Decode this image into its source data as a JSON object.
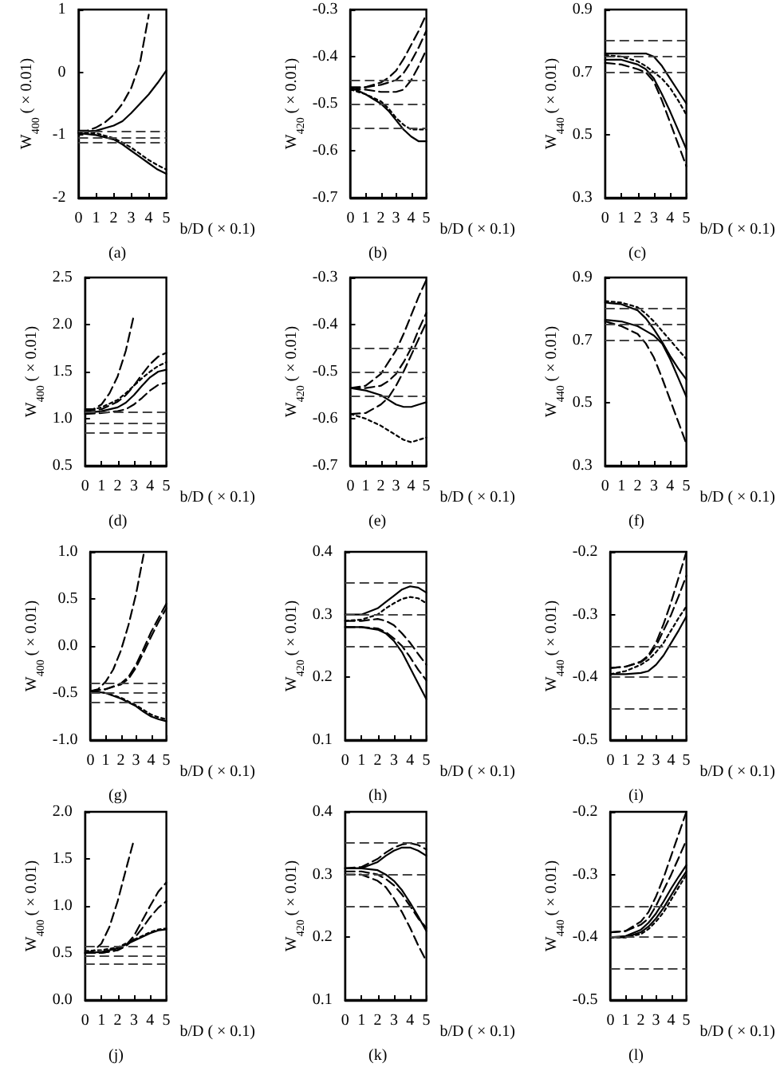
{
  "chart_data": [
    {
      "type": "line",
      "ylabel": "W$_{400}$ ( × 0.01)",
      "xlabel": "b/D ( × 0.1)",
      "annotations": [
        "(a)"
      ],
      "x": [
        0,
        1,
        2,
        2.5,
        3,
        3.5,
        4,
        4.5,
        5
      ],
      "xlim": [
        0,
        5
      ],
      "xticks": [
        0,
        1,
        2,
        3,
        4,
        5
      ],
      "ylim": [
        -2,
        1
      ],
      "yticks": [
        -2,
        -1,
        0,
        1
      ],
      "series": [
        {
          "color": "#000000",
          "line_style": "dashed",
          "x": [
            0,
            0.5,
            1,
            1.5,
            2,
            2.5,
            3,
            3.5,
            4
          ],
          "values": [
            -0.93,
            -0.93,
            -0.88,
            -0.8,
            -0.68,
            -0.5,
            -0.25,
            0.15,
            0.92
          ]
        },
        {
          "color": "#000000",
          "line_style": "solid",
          "values": [
            -0.95,
            -0.93,
            -0.85,
            -0.78,
            -0.65,
            -0.5,
            -0.35,
            -0.17,
            0.03
          ]
        },
        {
          "color": "#000000",
          "line_style": "dotted",
          "values": [
            -0.97,
            -0.97,
            -1.05,
            -1.12,
            -1.2,
            -1.3,
            -1.4,
            -1.48,
            -1.55
          ]
        },
        {
          "color": "#000000",
          "line_style": "solid",
          "values": [
            -0.97,
            -1.0,
            -1.07,
            -1.15,
            -1.25,
            -1.35,
            -1.45,
            -1.55,
            -1.62
          ]
        }
      ],
      "ref_lines": [
        {
          "axis": "y",
          "value": -0.95,
          "color": "#444444",
          "line_style": "dashed"
        },
        {
          "axis": "y",
          "value": -1.05,
          "color": "#444444",
          "line_style": "dashed"
        },
        {
          "axis": "y",
          "value": -1.12,
          "color": "#444444",
          "line_style": "dashed"
        }
      ]
    },
    {
      "type": "line",
      "ylabel": "W$_{420}$ ( × 0.01)",
      "xlabel": "b/D ( × 0.1)",
      "annotations": [
        "(b)"
      ],
      "x": [
        0,
        1,
        2,
        2.5,
        3,
        3.5,
        4,
        4.5,
        5
      ],
      "xlim": [
        0,
        5
      ],
      "xticks": [
        0,
        1,
        2,
        3,
        4,
        5
      ],
      "ylim": [
        -0.7,
        -0.3
      ],
      "yticks": [
        -0.7,
        -0.6,
        -0.5,
        -0.4,
        -0.3
      ],
      "series": [
        {
          "color": "#000000",
          "line_style": "dashed",
          "values": [
            -0.465,
            -0.465,
            -0.455,
            -0.445,
            -0.43,
            -0.405,
            -0.375,
            -0.345,
            -0.31
          ]
        },
        {
          "color": "#000000",
          "line_style": "dashed",
          "values": [
            -0.47,
            -0.465,
            -0.46,
            -0.455,
            -0.45,
            -0.435,
            -0.41,
            -0.38,
            -0.345
          ]
        },
        {
          "color": "#000000",
          "line_style": "dashed",
          "values": [
            -0.47,
            -0.47,
            -0.475,
            -0.475,
            -0.475,
            -0.47,
            -0.45,
            -0.42,
            -0.385
          ]
        },
        {
          "color": "#000000",
          "line_style": "dotted",
          "values": [
            -0.47,
            -0.48,
            -0.495,
            -0.51,
            -0.53,
            -0.545,
            -0.555,
            -0.555,
            -0.555
          ]
        },
        {
          "color": "#000000",
          "line_style": "solid",
          "values": [
            -0.465,
            -0.48,
            -0.5,
            -0.515,
            -0.535,
            -0.555,
            -0.57,
            -0.58,
            -0.58
          ]
        }
      ],
      "ref_lines": [
        {
          "axis": "y",
          "value": -0.45,
          "color": "#444444",
          "line_style": "dashed"
        },
        {
          "axis": "y",
          "value": -0.5,
          "color": "#444444",
          "line_style": "dashed"
        },
        {
          "axis": "y",
          "value": -0.55,
          "color": "#444444",
          "line_style": "dashed"
        }
      ]
    },
    {
      "type": "line",
      "ylabel": "W$_{440}$ ( × 0.01)",
      "xlabel": "b/D ( × 0.1)",
      "annotations": [
        "(c)"
      ],
      "x": [
        0,
        1,
        2,
        2.5,
        3,
        3.5,
        4,
        4.5,
        5
      ],
      "xlim": [
        0,
        5
      ],
      "xticks": [
        0,
        1,
        2,
        3,
        4,
        5
      ],
      "ylim": [
        0.3,
        0.9
      ],
      "yticks": [
        0.3,
        0.5,
        0.7,
        0.9
      ],
      "series": [
        {
          "color": "#000000",
          "line_style": "solid",
          "values": [
            0.76,
            0.76,
            0.76,
            0.76,
            0.75,
            0.72,
            0.68,
            0.64,
            0.6
          ]
        },
        {
          "color": "#000000",
          "line_style": "dotted",
          "values": [
            0.755,
            0.75,
            0.735,
            0.72,
            0.7,
            0.68,
            0.65,
            0.61,
            0.565
          ]
        },
        {
          "color": "#000000",
          "line_style": "solid",
          "values": [
            0.74,
            0.74,
            0.725,
            0.71,
            0.68,
            0.63,
            0.575,
            0.515,
            0.455
          ]
        },
        {
          "color": "#000000",
          "line_style": "dashed",
          "values": [
            0.73,
            0.725,
            0.71,
            0.7,
            0.67,
            0.61,
            0.54,
            0.47,
            0.4
          ]
        }
      ],
      "ref_lines": [
        {
          "axis": "y",
          "value": 0.8,
          "color": "#444444",
          "line_style": "dashed"
        },
        {
          "axis": "y",
          "value": 0.75,
          "color": "#444444",
          "line_style": "dashed"
        },
        {
          "axis": "y",
          "value": 0.7,
          "color": "#444444",
          "line_style": "dashed"
        }
      ]
    },
    {
      "type": "line",
      "ylabel": "W$_{400}$ ( × 0.01)",
      "xlabel": "b/D ( × 0.1)",
      "annotations": [
        "(d)"
      ],
      "x": [
        0,
        1,
        2,
        2.5,
        3,
        3.5,
        4,
        4.5,
        5
      ],
      "xlim": [
        0,
        5
      ],
      "xticks": [
        0,
        1,
        2,
        3,
        4,
        5
      ],
      "ylim": [
        0.5,
        2.5
      ],
      "yticks": [
        0.5,
        {
          "value": 1,
          "label": "1.0"
        },
        1.5,
        {
          "value": 2,
          "label": "2.0"
        },
        2.5
      ],
      "series": [
        {
          "color": "#000000",
          "line_style": "dashed",
          "x": [
            0,
            0.5,
            1,
            1.5,
            2,
            2.5,
            3
          ],
          "values": [
            1.1,
            1.1,
            1.15,
            1.27,
            1.45,
            1.72,
            2.1
          ]
        },
        {
          "color": "#000000",
          "line_style": "dashed",
          "values": [
            1.08,
            1.1,
            1.18,
            1.25,
            1.35,
            1.47,
            1.58,
            1.66,
            1.7
          ]
        },
        {
          "color": "#000000",
          "line_style": "dotted",
          "values": [
            1.08,
            1.12,
            1.2,
            1.27,
            1.35,
            1.43,
            1.5,
            1.56,
            1.6
          ]
        },
        {
          "color": "#000000",
          "line_style": "solid",
          "values": [
            1.06,
            1.08,
            1.12,
            1.17,
            1.25,
            1.35,
            1.44,
            1.5,
            1.52
          ]
        },
        {
          "color": "#000000",
          "line_style": "dashed",
          "values": [
            1.05,
            1.06,
            1.08,
            1.1,
            1.15,
            1.22,
            1.3,
            1.36,
            1.38
          ]
        }
      ],
      "ref_lines": [
        {
          "axis": "y",
          "value": 1.07,
          "color": "#444444",
          "line_style": "dashed"
        },
        {
          "axis": "y",
          "value": 0.96,
          "color": "#444444",
          "line_style": "dashed"
        },
        {
          "axis": "y",
          "value": 0.86,
          "color": "#444444",
          "line_style": "dashed"
        }
      ]
    },
    {
      "type": "line",
      "ylabel": "W$_{420}$ ( × 0.01)",
      "xlabel": "b/D ( × 0.1)",
      "annotations": [
        "(e)"
      ],
      "x": [
        0,
        1,
        2,
        2.5,
        3,
        3.5,
        4,
        4.5,
        5
      ],
      "xlim": [
        0,
        5
      ],
      "xticks": [
        0,
        1,
        2,
        3,
        4,
        5
      ],
      "ylim": [
        -0.7,
        -0.3
      ],
      "yticks": [
        -0.7,
        -0.6,
        -0.5,
        -0.4,
        -0.3
      ],
      "series": [
        {
          "color": "#000000",
          "line_style": "dashed",
          "values": [
            -0.535,
            -0.53,
            -0.505,
            -0.48,
            -0.455,
            -0.42,
            -0.38,
            -0.34,
            -0.305
          ]
        },
        {
          "color": "#000000",
          "line_style": "dashed",
          "values": [
            -0.535,
            -0.535,
            -0.53,
            -0.52,
            -0.505,
            -0.48,
            -0.45,
            -0.41,
            -0.375
          ]
        },
        {
          "color": "#000000",
          "line_style": "dashed",
          "values": [
            -0.59,
            -0.588,
            -0.57,
            -0.555,
            -0.53,
            -0.5,
            -0.465,
            -0.43,
            -0.395
          ]
        },
        {
          "color": "#000000",
          "line_style": "solid",
          "values": [
            -0.535,
            -0.54,
            -0.55,
            -0.56,
            -0.57,
            -0.575,
            -0.575,
            -0.57,
            -0.565
          ]
        },
        {
          "color": "#000000",
          "line_style": "dotted",
          "values": [
            -0.59,
            -0.6,
            -0.615,
            -0.625,
            -0.635,
            -0.645,
            -0.65,
            -0.645,
            -0.64
          ]
        }
      ],
      "ref_lines": [
        {
          "axis": "y",
          "value": -0.45,
          "color": "#444444",
          "line_style": "dashed"
        },
        {
          "axis": "y",
          "value": -0.5,
          "color": "#444444",
          "line_style": "dashed"
        },
        {
          "axis": "y",
          "value": -0.55,
          "color": "#444444",
          "line_style": "dashed"
        }
      ]
    },
    {
      "type": "line",
      "ylabel": "W$_{440}$ ( × 0.01)",
      "xlabel": "b/D ( × 0.1)",
      "annotations": [
        "(f)"
      ],
      "x": [
        0,
        1,
        2,
        2.5,
        3,
        3.5,
        4,
        4.5,
        5
      ],
      "xlim": [
        0,
        5
      ],
      "xticks": [
        0,
        1,
        2,
        3,
        4,
        5
      ],
      "ylim": [
        0.3,
        0.9
      ],
      "yticks": [
        0.3,
        0.5,
        0.7,
        0.9
      ],
      "series": [
        {
          "color": "#000000",
          "line_style": "dotted",
          "values": [
            0.825,
            0.82,
            0.805,
            0.785,
            0.76,
            0.73,
            0.7,
            0.67,
            0.64
          ]
        },
        {
          "color": "#000000",
          "line_style": "solid",
          "values": [
            0.82,
            0.815,
            0.795,
            0.77,
            0.735,
            0.695,
            0.65,
            0.61,
            0.575
          ]
        },
        {
          "color": "#000000",
          "line_style": "solid",
          "values": [
            0.765,
            0.76,
            0.745,
            0.73,
            0.715,
            0.69,
            0.64,
            0.58,
            0.52
          ]
        },
        {
          "color": "#000000",
          "line_style": "dashed",
          "values": [
            0.76,
            0.745,
            0.72,
            0.69,
            0.645,
            0.58,
            0.51,
            0.44,
            0.37
          ]
        }
      ],
      "ref_lines": [
        {
          "axis": "y",
          "value": 0.8,
          "color": "#444444",
          "line_style": "dashed"
        },
        {
          "axis": "y",
          "value": 0.75,
          "color": "#444444",
          "line_style": "dashed"
        },
        {
          "axis": "y",
          "value": 0.7,
          "color": "#444444",
          "line_style": "dashed"
        }
      ]
    },
    {
      "type": "line",
      "ylabel": "W$_{400}$ ( × 0.01)",
      "xlabel": "b/D ( × 0.1)",
      "annotations": [
        "(g)"
      ],
      "x": [
        0,
        1,
        2,
        2.5,
        3,
        3.5,
        4,
        4.5,
        5
      ],
      "xlim": [
        0,
        5
      ],
      "xticks": [
        0,
        1,
        2,
        3,
        4,
        5
      ],
      "ylim": [
        -1,
        1
      ],
      "yticks": [
        {
          "value": -1,
          "label": "-1.0"
        },
        -0.5,
        {
          "value": 0,
          "label": "0.0"
        },
        0.5,
        {
          "value": 1,
          "label": "1.0"
        }
      ],
      "series": [
        {
          "color": "#000000",
          "line_style": "dashed",
          "x": [
            0,
            0.5,
            1,
            1.5,
            2,
            2.5,
            3,
            3.5
          ],
          "values": [
            -0.48,
            -0.46,
            -0.38,
            -0.25,
            -0.05,
            0.22,
            0.55,
            0.97
          ]
        },
        {
          "color": "#000000",
          "line_style": "dashed",
          "values": [
            -0.48,
            -0.46,
            -0.4,
            -0.33,
            -0.2,
            -0.03,
            0.15,
            0.3,
            0.45
          ]
        },
        {
          "color": "#000000",
          "line_style": "dashed",
          "values": [
            -0.48,
            -0.46,
            -0.41,
            -0.35,
            -0.23,
            -0.07,
            0.1,
            0.26,
            0.4
          ]
        },
        {
          "color": "#000000",
          "line_style": "solid",
          "values": [
            -0.48,
            -0.5,
            -0.56,
            -0.6,
            -0.64,
            -0.7,
            -0.75,
            -0.78,
            -0.8
          ]
        },
        {
          "color": "#000000",
          "line_style": "dotted",
          "values": [
            -0.48,
            -0.5,
            -0.55,
            -0.59,
            -0.63,
            -0.68,
            -0.73,
            -0.76,
            -0.78
          ]
        }
      ],
      "ref_lines": [
        {
          "axis": "y",
          "value": -0.4,
          "color": "#444444",
          "line_style": "dashed"
        },
        {
          "axis": "y",
          "value": -0.5,
          "color": "#444444",
          "line_style": "dashed"
        },
        {
          "axis": "y",
          "value": -0.6,
          "color": "#444444",
          "line_style": "dashed"
        }
      ]
    },
    {
      "type": "line",
      "ylabel": "W$_{420}$ ( × 0.01)",
      "xlabel": "b/D ( × 0.1)",
      "annotations": [
        "(h)"
      ],
      "x": [
        0,
        1,
        2,
        2.5,
        3,
        3.5,
        4,
        4.5,
        5
      ],
      "xlim": [
        0,
        5
      ],
      "xticks": [
        0,
        1,
        2,
        3,
        4,
        5
      ],
      "ylim": [
        0.1,
        0.4
      ],
      "yticks": [
        0.1,
        0.2,
        0.3,
        0.4
      ],
      "series": [
        {
          "color": "#000000",
          "line_style": "solid",
          "values": [
            0.3,
            0.3,
            0.31,
            0.32,
            0.33,
            0.34,
            0.345,
            0.343,
            0.335
          ]
        },
        {
          "color": "#000000",
          "line_style": "dotted",
          "values": [
            0.29,
            0.292,
            0.3,
            0.31,
            0.318,
            0.325,
            0.328,
            0.326,
            0.318
          ]
        },
        {
          "color": "#000000",
          "line_style": "dashed",
          "values": [
            0.29,
            0.29,
            0.293,
            0.29,
            0.283,
            0.27,
            0.255,
            0.237,
            0.22
          ]
        },
        {
          "color": "#000000",
          "line_style": "dashed",
          "values": [
            0.28,
            0.28,
            0.278,
            0.272,
            0.262,
            0.25,
            0.232,
            0.212,
            0.195
          ]
        },
        {
          "color": "#000000",
          "line_style": "solid",
          "values": [
            0.28,
            0.28,
            0.276,
            0.27,
            0.258,
            0.24,
            0.215,
            0.19,
            0.165
          ]
        }
      ],
      "ref_lines": [
        {
          "axis": "y",
          "value": 0.35,
          "color": "#444444",
          "line_style": "dashed"
        },
        {
          "axis": "y",
          "value": 0.3,
          "color": "#444444",
          "line_style": "dashed"
        },
        {
          "axis": "y",
          "value": 0.25,
          "color": "#444444",
          "line_style": "dashed"
        }
      ]
    },
    {
      "type": "line",
      "ylabel": "W$_{440}$ ( × 0.01)",
      "xlabel": "b/D ( × 0.1)",
      "annotations": [
        "(i)"
      ],
      "x": [
        0,
        1,
        2,
        2.5,
        3,
        3.5,
        4,
        4.5,
        5
      ],
      "xlim": [
        0,
        5
      ],
      "xticks": [
        0,
        1,
        2,
        3,
        4,
        5
      ],
      "ylim": [
        -0.5,
        -0.2
      ],
      "yticks": [
        -0.5,
        -0.4,
        -0.3,
        -0.2
      ],
      "series": [
        {
          "color": "#000000",
          "line_style": "dashed",
          "values": [
            -0.385,
            -0.383,
            -0.375,
            -0.365,
            -0.345,
            -0.315,
            -0.28,
            -0.24,
            -0.2
          ]
        },
        {
          "color": "#000000",
          "line_style": "dashed",
          "values": [
            -0.385,
            -0.383,
            -0.376,
            -0.367,
            -0.35,
            -0.325,
            -0.3,
            -0.27,
            -0.238
          ]
        },
        {
          "color": "#000000",
          "line_style": "dotted",
          "values": [
            -0.395,
            -0.39,
            -0.38,
            -0.372,
            -0.36,
            -0.345,
            -0.325,
            -0.305,
            -0.287
          ]
        },
        {
          "color": "#000000",
          "line_style": "solid",
          "values": [
            -0.395,
            -0.395,
            -0.393,
            -0.39,
            -0.38,
            -0.365,
            -0.345,
            -0.325,
            -0.303
          ]
        }
      ],
      "ref_lines": [
        {
          "axis": "y",
          "value": -0.35,
          "color": "#444444",
          "line_style": "dashed"
        },
        {
          "axis": "y",
          "value": -0.4,
          "color": "#444444",
          "line_style": "dashed"
        },
        {
          "axis": "y",
          "value": -0.45,
          "color": "#444444",
          "line_style": "dashed"
        }
      ]
    },
    {
      "type": "line",
      "ylabel": "W$_{400}$ ( × 0.01)",
      "xlabel": "b/D ( × 0.1)",
      "annotations": [
        "(j)"
      ],
      "x": [
        0,
        1,
        2,
        2.5,
        3,
        3.5,
        4,
        4.5,
        5
      ],
      "xlim": [
        0,
        5
      ],
      "xticks": [
        0,
        1,
        2,
        3,
        4,
        5
      ],
      "ylim": [
        0,
        2
      ],
      "yticks": [
        {
          "value": 0,
          "label": "0.0"
        },
        0.5,
        {
          "value": 1,
          "label": "1.0"
        },
        1.5,
        {
          "value": 2,
          "label": "2.0"
        }
      ],
      "series": [
        {
          "color": "#000000",
          "line_style": "dashed",
          "x": [
            0,
            0.5,
            1,
            1.5,
            2,
            2.5,
            3
          ],
          "values": [
            0.5,
            0.52,
            0.6,
            0.78,
            1.05,
            1.38,
            1.7
          ]
        },
        {
          "color": "#000000",
          "line_style": "dashed",
          "values": [
            0.5,
            0.5,
            0.53,
            0.58,
            0.68,
            0.84,
            1.0,
            1.15,
            1.25
          ]
        },
        {
          "color": "#000000",
          "line_style": "dashed",
          "values": [
            0.5,
            0.5,
            0.53,
            0.57,
            0.65,
            0.76,
            0.88,
            0.98,
            1.05
          ]
        },
        {
          "color": "#000000",
          "line_style": "solid",
          "values": [
            0.5,
            0.51,
            0.55,
            0.59,
            0.63,
            0.67,
            0.71,
            0.74,
            0.75
          ]
        },
        {
          "color": "#000000",
          "line_style": "dotted",
          "values": [
            0.52,
            0.53,
            0.56,
            0.6,
            0.64,
            0.68,
            0.72,
            0.75,
            0.76
          ]
        }
      ],
      "ref_lines": [
        {
          "axis": "y",
          "value": 0.58,
          "color": "#444444",
          "line_style": "dashed"
        },
        {
          "axis": "y",
          "value": 0.47,
          "color": "#444444",
          "line_style": "dashed"
        },
        {
          "axis": "y",
          "value": 0.38,
          "color": "#444444",
          "line_style": "dashed"
        }
      ]
    },
    {
      "type": "line",
      "ylabel": "W$_{420}$ ( × 0.01)",
      "xlabel": "b/D ( × 0.1)",
      "annotations": [
        "(k)"
      ],
      "x": [
        0,
        1,
        2,
        2.5,
        3,
        3.5,
        4,
        4.5,
        5
      ],
      "xlim": [
        0,
        5
      ],
      "xticks": [
        0,
        1,
        2,
        3,
        4,
        5
      ],
      "ylim": [
        0.1,
        0.4
      ],
      "yticks": [
        0.1,
        0.2,
        0.3,
        0.4
      ],
      "series": [
        {
          "color": "#000000",
          "line_style": "dashed",
          "values": [
            0.31,
            0.312,
            0.325,
            0.335,
            0.343,
            0.348,
            0.35,
            0.347,
            0.34
          ]
        },
        {
          "color": "#000000",
          "line_style": "solid",
          "values": [
            0.31,
            0.31,
            0.32,
            0.33,
            0.338,
            0.343,
            0.343,
            0.338,
            0.33
          ]
        },
        {
          "color": "#000000",
          "line_style": "solid",
          "values": [
            0.31,
            0.31,
            0.307,
            0.3,
            0.29,
            0.275,
            0.255,
            0.233,
            0.21
          ]
        },
        {
          "color": "#000000",
          "line_style": "dashed",
          "values": [
            0.305,
            0.305,
            0.3,
            0.293,
            0.283,
            0.268,
            0.25,
            0.23,
            0.215
          ]
        },
        {
          "color": "#000000",
          "line_style": "dashed",
          "values": [
            0.3,
            0.3,
            0.29,
            0.28,
            0.262,
            0.24,
            0.215,
            0.187,
            0.162
          ]
        }
      ],
      "ref_lines": [
        {
          "axis": "y",
          "value": 0.35,
          "color": "#444444",
          "line_style": "dashed"
        },
        {
          "axis": "y",
          "value": 0.3,
          "color": "#444444",
          "line_style": "dashed"
        },
        {
          "axis": "y",
          "value": 0.25,
          "color": "#444444",
          "line_style": "dashed"
        }
      ]
    },
    {
      "type": "line",
      "ylabel": "W$_{440}$ ( × 0.01)",
      "xlabel": "b/D ( × 0.1)",
      "annotations": [
        "(l)"
      ],
      "x": [
        0,
        1,
        2,
        2.5,
        3,
        3.5,
        4,
        4.5,
        5
      ],
      "xlim": [
        0,
        5
      ],
      "xticks": [
        0,
        1,
        2,
        3,
        4,
        5
      ],
      "ylim": [
        -0.5,
        -0.2
      ],
      "yticks": [
        -0.5,
        -0.4,
        -0.3,
        -0.2
      ],
      "series": [
        {
          "color": "#000000",
          "line_style": "dashed",
          "values": [
            -0.392,
            -0.39,
            -0.375,
            -0.36,
            -0.335,
            -0.305,
            -0.27,
            -0.235,
            -0.2
          ]
        },
        {
          "color": "#000000",
          "line_style": "dashed",
          "values": [
            -0.392,
            -0.39,
            -0.38,
            -0.37,
            -0.35,
            -0.325,
            -0.3,
            -0.273,
            -0.245
          ]
        },
        {
          "color": "#000000",
          "line_style": "solid",
          "values": [
            -0.4,
            -0.398,
            -0.388,
            -0.377,
            -0.362,
            -0.343,
            -0.322,
            -0.303,
            -0.285
          ]
        },
        {
          "color": "#000000",
          "line_style": "solid",
          "values": [
            -0.4,
            -0.4,
            -0.392,
            -0.383,
            -0.37,
            -0.353,
            -0.333,
            -0.313,
            -0.295
          ]
        },
        {
          "color": "#000000",
          "line_style": "dotted",
          "values": [
            -0.4,
            -0.4,
            -0.395,
            -0.387,
            -0.375,
            -0.36,
            -0.34,
            -0.32,
            -0.3
          ]
        }
      ],
      "ref_lines": [
        {
          "axis": "y",
          "value": -0.35,
          "color": "#444444",
          "line_style": "dashed"
        },
        {
          "axis": "y",
          "value": -0.4,
          "color": "#444444",
          "line_style": "dashed"
        },
        {
          "axis": "y",
          "value": -0.45,
          "color": "#444444",
          "line_style": "dashed"
        }
      ]
    }
  ]
}
